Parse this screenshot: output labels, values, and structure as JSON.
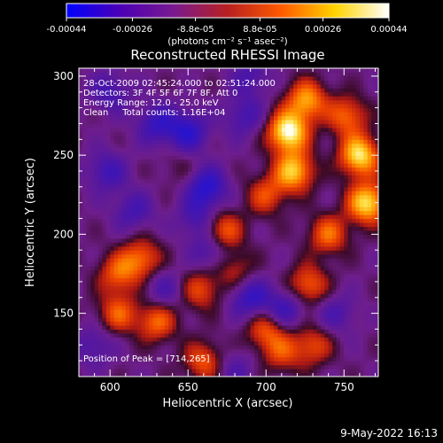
{
  "colorbar": {
    "tick_labels": [
      "-0.00044",
      "-0.00026",
      "-8.8e-05",
      "8.8e-05",
      "0.00026",
      "0.00044"
    ],
    "tick_values": [
      -0.00044,
      -0.00026,
      -8.8e-05,
      8.8e-05,
      0.00026,
      0.00044
    ],
    "range": [
      -0.00044,
      0.00044
    ],
    "units": "(photons cm⁻² s⁻¹ asec⁻²)",
    "colors": [
      "#0000ff",
      "#4b00b5",
      "#7a1a8f",
      "#b82020",
      "#ff5a00",
      "#ffd400",
      "#ffffff"
    ]
  },
  "chart_data": {
    "type": "heatmap",
    "title": "Reconstructed RHESSI Image",
    "xlabel": "Heliocentric X (arcsec)",
    "ylabel": "Heliocentric Y (arcsec)",
    "xlim": [
      580,
      772
    ],
    "ylim": [
      110,
      305
    ],
    "xticks": [
      600,
      650,
      700,
      750
    ],
    "yticks": [
      150,
      200,
      250,
      300
    ],
    "xtick_labels": [
      "600",
      "650",
      "700",
      "750"
    ],
    "ytick_labels": [
      "150",
      "200",
      "250",
      "300"
    ],
    "annotations": [
      "28-Oct-2009 02:45:24.000 to 02:51:24.000",
      "Detectors: 3F 4F 5F 6F 7F 8F, Att 0",
      "Energy Range: 12.0 - 25.0 keV",
      "Clean     Total counts: 1.16E+04"
    ],
    "peak_label": "Position of Peak = [714,265]",
    "peak": [
      714,
      265
    ],
    "sources": [
      {
        "x": 714,
        "y": 265,
        "amp": 1.0
      },
      {
        "x": 718,
        "y": 240,
        "amp": 0.8
      },
      {
        "x": 726,
        "y": 285,
        "amp": 0.7
      },
      {
        "x": 760,
        "y": 250,
        "amp": 0.9
      },
      {
        "x": 765,
        "y": 220,
        "amp": 0.9
      },
      {
        "x": 752,
        "y": 275,
        "amp": 0.55
      },
      {
        "x": 740,
        "y": 200,
        "amp": 0.55
      },
      {
        "x": 700,
        "y": 225,
        "amp": 0.45
      },
      {
        "x": 672,
        "y": 202,
        "amp": 0.6
      },
      {
        "x": 620,
        "y": 185,
        "amp": 0.55
      },
      {
        "x": 605,
        "y": 175,
        "amp": 0.5
      },
      {
        "x": 630,
        "y": 145,
        "amp": 0.55
      },
      {
        "x": 605,
        "y": 150,
        "amp": 0.5
      },
      {
        "x": 658,
        "y": 165,
        "amp": 0.45
      },
      {
        "x": 700,
        "y": 140,
        "amp": 0.5
      },
      {
        "x": 727,
        "y": 168,
        "amp": 0.55
      },
      {
        "x": 660,
        "y": 120,
        "amp": 0.5
      },
      {
        "x": 710,
        "y": 125,
        "amp": 0.4
      },
      {
        "x": 730,
        "y": 130,
        "amp": 0.45
      },
      {
        "x": 680,
        "y": 178,
        "amp": 0.35
      },
      {
        "x": 645,
        "y": 242,
        "amp": 0.15
      },
      {
        "x": 650,
        "y": 265,
        "amp": -0.55
      },
      {
        "x": 630,
        "y": 270,
        "amp": -0.45
      },
      {
        "x": 662,
        "y": 230,
        "amp": -0.6
      },
      {
        "x": 686,
        "y": 275,
        "amp": -0.35
      },
      {
        "x": 600,
        "y": 290,
        "amp": -0.35
      },
      {
        "x": 598,
        "y": 240,
        "amp": -0.4
      },
      {
        "x": 615,
        "y": 215,
        "amp": -0.35
      },
      {
        "x": 656,
        "y": 210,
        "amp": -0.35
      },
      {
        "x": 690,
        "y": 160,
        "amp": -0.5
      },
      {
        "x": 712,
        "y": 153,
        "amp": -0.45
      },
      {
        "x": 665,
        "y": 190,
        "amp": -0.4
      },
      {
        "x": 635,
        "y": 165,
        "amp": -0.3
      },
      {
        "x": 745,
        "y": 150,
        "amp": -0.3
      },
      {
        "x": 690,
        "y": 300,
        "amp": -0.3
      },
      {
        "x": 590,
        "y": 130,
        "amp": -0.3
      },
      {
        "x": 680,
        "y": 115,
        "amp": -0.25
      }
    ]
  },
  "footer": {
    "date": "9-May-2022 16:13"
  }
}
